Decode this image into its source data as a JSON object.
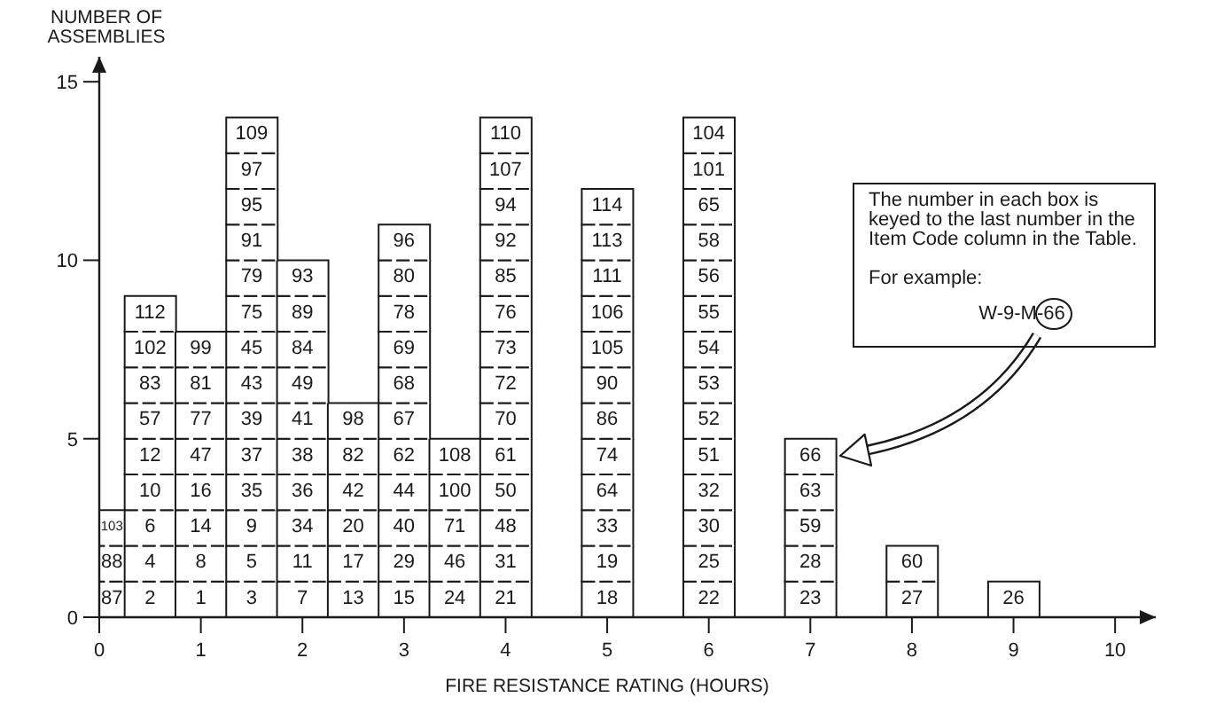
{
  "chart_data": {
    "type": "bar",
    "xlabel": "FIRE RESISTANCE RATING (HOURS)",
    "ylabel": "NUMBER OF ASSEMBLIES",
    "x": [
      0,
      0.5,
      1,
      1.5,
      2,
      2.5,
      3,
      3.5,
      4,
      5,
      6,
      7,
      8,
      9
    ],
    "stacked": true,
    "xlim": [
      0,
      10.4
    ],
    "xticks": [
      0,
      1,
      2,
      3,
      4,
      5,
      6,
      7,
      8,
      9,
      10
    ],
    "ylim": [
      0,
      15.7
    ],
    "yticks": [
      0,
      5,
      10,
      15
    ],
    "series": [
      {
        "color": "#ffffff",
        "values": [
          1,
          1,
          1,
          1,
          1,
          1,
          1,
          1,
          1,
          1,
          1,
          1,
          1,
          1
        ]
      },
      {
        "color": "#ffffff",
        "values": [
          1,
          1,
          1,
          1,
          1,
          1,
          1,
          1,
          1,
          1,
          1,
          1,
          1,
          null
        ]
      },
      {
        "color": "#ffffff",
        "values": [
          1,
          1,
          1,
          1,
          1,
          1,
          1,
          1,
          1,
          1,
          1,
          1,
          null,
          null
        ]
      },
      {
        "color": "#ffffff",
        "values": [
          null,
          1,
          1,
          1,
          1,
          1,
          1,
          1,
          1,
          1,
          1,
          1,
          null,
          null
        ]
      },
      {
        "color": "#ffffff",
        "values": [
          null,
          1,
          1,
          1,
          1,
          1,
          1,
          1,
          1,
          1,
          1,
          1,
          null,
          null
        ]
      },
      {
        "color": "#ffffff",
        "values": [
          null,
          1,
          1,
          1,
          1,
          1,
          1,
          null,
          1,
          1,
          1,
          null,
          null,
          null
        ]
      },
      {
        "color": "#ffffff",
        "values": [
          null,
          1,
          1,
          1,
          1,
          null,
          1,
          null,
          1,
          1,
          1,
          null,
          null,
          null
        ]
      },
      {
        "color": "#ffffff",
        "values": [
          null,
          1,
          1,
          1,
          1,
          null,
          1,
          null,
          1,
          1,
          1,
          null,
          null,
          null
        ]
      },
      {
        "color": "#ffffff",
        "values": [
          null,
          1,
          null,
          1,
          1,
          null,
          1,
          null,
          1,
          1,
          1,
          null,
          null,
          null
        ]
      },
      {
        "color": "#ffffff",
        "values": [
          null,
          null,
          null,
          1,
          1,
          null,
          1,
          null,
          1,
          1,
          1,
          null,
          null,
          null
        ]
      },
      {
        "color": "#ffffff",
        "values": [
          null,
          null,
          null,
          1,
          null,
          null,
          1,
          null,
          1,
          1,
          1,
          null,
          null,
          null
        ]
      },
      {
        "color": "#ffffff",
        "values": [
          null,
          null,
          null,
          1,
          null,
          null,
          null,
          null,
          1,
          1,
          1,
          null,
          null,
          null
        ]
      },
      {
        "color": "#ffffff",
        "values": [
          null,
          null,
          null,
          1,
          null,
          null,
          null,
          null,
          1,
          null,
          1,
          null,
          null,
          null
        ]
      },
      {
        "color": "#ffffff",
        "values": [
          null,
          null,
          null,
          1,
          null,
          null,
          null,
          null,
          1,
          null,
          1,
          null,
          null,
          null
        ]
      }
    ],
    "annotations": [
      {
        "text": "87",
        "x": 0,
        "y": 1
      },
      {
        "text": "88",
        "x": 0,
        "y": 2
      },
      {
        "text": "103",
        "x": 0,
        "y": 3
      },
      {
        "text": "2",
        "x": 0.5,
        "y": 1
      },
      {
        "text": "4",
        "x": 0.5,
        "y": 2
      },
      {
        "text": "6",
        "x": 0.5,
        "y": 3
      },
      {
        "text": "10",
        "x": 0.5,
        "y": 4
      },
      {
        "text": "12",
        "x": 0.5,
        "y": 5
      },
      {
        "text": "57",
        "x": 0.5,
        "y": 6
      },
      {
        "text": "83",
        "x": 0.5,
        "y": 7
      },
      {
        "text": "102",
        "x": 0.5,
        "y": 8
      },
      {
        "text": "112",
        "x": 0.5,
        "y": 9
      },
      {
        "text": "1",
        "x": 1,
        "y": 1
      },
      {
        "text": "8",
        "x": 1,
        "y": 2
      },
      {
        "text": "14",
        "x": 1,
        "y": 3
      },
      {
        "text": "16",
        "x": 1,
        "y": 4
      },
      {
        "text": "47",
        "x": 1,
        "y": 5
      },
      {
        "text": "77",
        "x": 1,
        "y": 6
      },
      {
        "text": "81",
        "x": 1,
        "y": 7
      },
      {
        "text": "99",
        "x": 1,
        "y": 8
      },
      {
        "text": "3",
        "x": 1.5,
        "y": 1
      },
      {
        "text": "5",
        "x": 1.5,
        "y": 2
      },
      {
        "text": "9",
        "x": 1.5,
        "y": 3
      },
      {
        "text": "35",
        "x": 1.5,
        "y": 4
      },
      {
        "text": "37",
        "x": 1.5,
        "y": 5
      },
      {
        "text": "39",
        "x": 1.5,
        "y": 6
      },
      {
        "text": "43",
        "x": 1.5,
        "y": 7
      },
      {
        "text": "45",
        "x": 1.5,
        "y": 8
      },
      {
        "text": "75",
        "x": 1.5,
        "y": 9
      },
      {
        "text": "79",
        "x": 1.5,
        "y": 10
      },
      {
        "text": "91",
        "x": 1.5,
        "y": 11
      },
      {
        "text": "95",
        "x": 1.5,
        "y": 12
      },
      {
        "text": "97",
        "x": 1.5,
        "y": 13
      },
      {
        "text": "109",
        "x": 1.5,
        "y": 14
      },
      {
        "text": "7",
        "x": 2,
        "y": 1
      },
      {
        "text": "11",
        "x": 2,
        "y": 2
      },
      {
        "text": "34",
        "x": 2,
        "y": 3
      },
      {
        "text": "36",
        "x": 2,
        "y": 4
      },
      {
        "text": "38",
        "x": 2,
        "y": 5
      },
      {
        "text": "41",
        "x": 2,
        "y": 6
      },
      {
        "text": "49",
        "x": 2,
        "y": 7
      },
      {
        "text": "84",
        "x": 2,
        "y": 8
      },
      {
        "text": "89",
        "x": 2,
        "y": 9
      },
      {
        "text": "93",
        "x": 2,
        "y": 10
      },
      {
        "text": "13",
        "x": 2.5,
        "y": 1
      },
      {
        "text": "17",
        "x": 2.5,
        "y": 2
      },
      {
        "text": "20",
        "x": 2.5,
        "y": 3
      },
      {
        "text": "42",
        "x": 2.5,
        "y": 4
      },
      {
        "text": "82",
        "x": 2.5,
        "y": 5
      },
      {
        "text": "98",
        "x": 2.5,
        "y": 6
      },
      {
        "text": "15",
        "x": 3,
        "y": 1
      },
      {
        "text": "29",
        "x": 3,
        "y": 2
      },
      {
        "text": "40",
        "x": 3,
        "y": 3
      },
      {
        "text": "44",
        "x": 3,
        "y": 4
      },
      {
        "text": "62",
        "x": 3,
        "y": 5
      },
      {
        "text": "67",
        "x": 3,
        "y": 6
      },
      {
        "text": "68",
        "x": 3,
        "y": 7
      },
      {
        "text": "69",
        "x": 3,
        "y": 8
      },
      {
        "text": "78",
        "x": 3,
        "y": 9
      },
      {
        "text": "80",
        "x": 3,
        "y": 10
      },
      {
        "text": "96",
        "x": 3,
        "y": 11
      },
      {
        "text": "24",
        "x": 3.5,
        "y": 1
      },
      {
        "text": "46",
        "x": 3.5,
        "y": 2
      },
      {
        "text": "71",
        "x": 3.5,
        "y": 3
      },
      {
        "text": "100",
        "x": 3.5,
        "y": 4
      },
      {
        "text": "108",
        "x": 3.5,
        "y": 5
      },
      {
        "text": "21",
        "x": 4,
        "y": 1
      },
      {
        "text": "31",
        "x": 4,
        "y": 2
      },
      {
        "text": "48",
        "x": 4,
        "y": 3
      },
      {
        "text": "50",
        "x": 4,
        "y": 4
      },
      {
        "text": "61",
        "x": 4,
        "y": 5
      },
      {
        "text": "70",
        "x": 4,
        "y": 6
      },
      {
        "text": "72",
        "x": 4,
        "y": 7
      },
      {
        "text": "73",
        "x": 4,
        "y": 8
      },
      {
        "text": "76",
        "x": 4,
        "y": 9
      },
      {
        "text": "85",
        "x": 4,
        "y": 10
      },
      {
        "text": "92",
        "x": 4,
        "y": 11
      },
      {
        "text": "94",
        "x": 4,
        "y": 12
      },
      {
        "text": "107",
        "x": 4,
        "y": 13
      },
      {
        "text": "110",
        "x": 4,
        "y": 14
      },
      {
        "text": "18",
        "x": 5,
        "y": 1
      },
      {
        "text": "19",
        "x": 5,
        "y": 2
      },
      {
        "text": "33",
        "x": 5,
        "y": 3
      },
      {
        "text": "64",
        "x": 5,
        "y": 4
      },
      {
        "text": "74",
        "x": 5,
        "y": 5
      },
      {
        "text": "86",
        "x": 5,
        "y": 6
      },
      {
        "text": "90",
        "x": 5,
        "y": 7
      },
      {
        "text": "105",
        "x": 5,
        "y": 8
      },
      {
        "text": "106",
        "x": 5,
        "y": 9
      },
      {
        "text": "111",
        "x": 5,
        "y": 10
      },
      {
        "text": "113",
        "x": 5,
        "y": 11
      },
      {
        "text": "114",
        "x": 5,
        "y": 12
      },
      {
        "text": "22",
        "x": 6,
        "y": 1
      },
      {
        "text": "25",
        "x": 6,
        "y": 2
      },
      {
        "text": "30",
        "x": 6,
        "y": 3
      },
      {
        "text": "32",
        "x": 6,
        "y": 4
      },
      {
        "text": "51",
        "x": 6,
        "y": 5
      },
      {
        "text": "52",
        "x": 6,
        "y": 6
      },
      {
        "text": "53",
        "x": 6,
        "y": 7
      },
      {
        "text": "54",
        "x": 6,
        "y": 8
      },
      {
        "text": "55",
        "x": 6,
        "y": 9
      },
      {
        "text": "56",
        "x": 6,
        "y": 10
      },
      {
        "text": "58",
        "x": 6,
        "y": 11
      },
      {
        "text": "65",
        "x": 6,
        "y": 12
      },
      {
        "text": "101",
        "x": 6,
        "y": 13
      },
      {
        "text": "104",
        "x": 6,
        "y": 14
      },
      {
        "text": "23",
        "x": 7,
        "y": 1
      },
      {
        "text": "28",
        "x": 7,
        "y": 2
      },
      {
        "text": "59",
        "x": 7,
        "y": 3
      },
      {
        "text": "63",
        "x": 7,
        "y": 4
      },
      {
        "text": "66",
        "x": 7,
        "y": 5
      },
      {
        "text": "27",
        "x": 8,
        "y": 1
      },
      {
        "text": "60",
        "x": 8,
        "y": 2
      },
      {
        "text": "26",
        "x": 9,
        "y": 1
      },
      "The number in each box is keyed to the last number in the Item Code column in the Table.",
      "For example:",
      "W-9-M-66"
    ]
  }
}
